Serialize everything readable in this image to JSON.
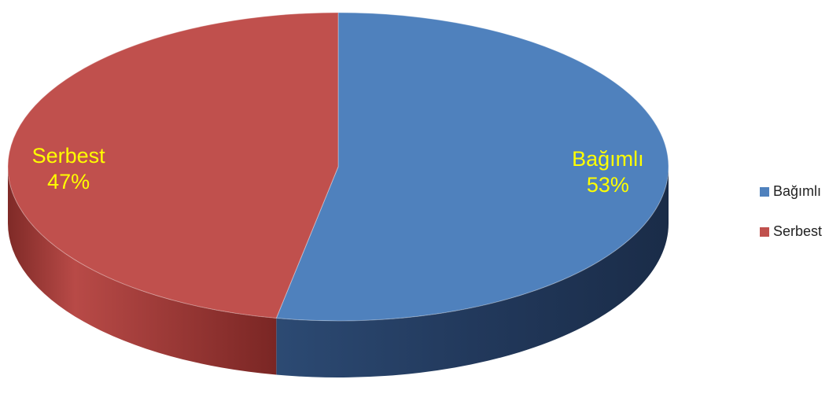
{
  "chart_data": {
    "type": "pie",
    "variant": "3d",
    "categories": [
      "Bağımlı",
      "Serbest"
    ],
    "values": [
      53,
      47
    ],
    "data_labels": [
      {
        "name": "Bağımlı",
        "percent": "53%"
      },
      {
        "name": "Serbest",
        "percent": "47%"
      }
    ],
    "colors": [
      "#4F81BD",
      "#C0504D"
    ],
    "label_color": "#FFFF00",
    "legend": {
      "position": "right",
      "entries": [
        "Bağımlı",
        "Serbest"
      ]
    }
  }
}
